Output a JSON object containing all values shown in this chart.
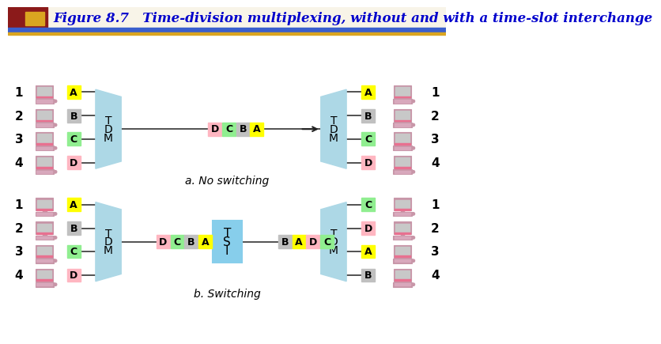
{
  "title": "Figure 8.7   Time-division multiplexing, without and with a time-slot interchange",
  "title_color": "#0000CC",
  "title_fontsize": 12,
  "bg_color": "#FFFFFF",
  "tdm_color": "#ADD8E6",
  "tsi_color": "#87CEEB",
  "slot_colors": {
    "A": "#FFFF00",
    "B": "#C0C0C0",
    "C": "#90EE90",
    "D": "#FFB6C1"
  },
  "section_a_label": "a. No switching",
  "section_b_label": "b. Switching",
  "top_diagram": {
    "left_slots": [
      "A",
      "B",
      "C",
      "D"
    ],
    "mux_slots": [
      "D",
      "C",
      "B",
      "A"
    ],
    "right_slots": [
      "A",
      "B",
      "C",
      "D"
    ]
  },
  "bottom_diagram": {
    "left_slots": [
      "A",
      "B",
      "C",
      "D"
    ],
    "mux_slots_in": [
      "D",
      "C",
      "B",
      "A"
    ],
    "mux_slots_out": [
      "B",
      "A",
      "D",
      "C"
    ],
    "right_slots": [
      "C",
      "D",
      "A",
      "B"
    ]
  }
}
